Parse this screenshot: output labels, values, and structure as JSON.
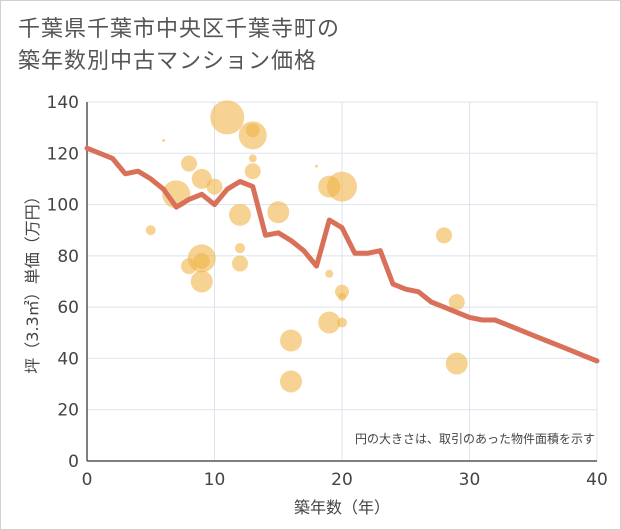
{
  "chart_data": {
    "type": "scatter",
    "title_lines": [
      "千葉県千葉市中央区千葉寺町の",
      "築年数別中古マンション価格"
    ],
    "xlabel": "築年数（年）",
    "ylabel": "坪（3.3㎡）単価（万円）",
    "xlim": [
      0,
      40
    ],
    "ylim": [
      0,
      140
    ],
    "x_ticks": [
      0,
      10,
      20,
      30,
      40
    ],
    "y_ticks": [
      0,
      20,
      40,
      60,
      80,
      100,
      120,
      140
    ],
    "note": "円の大きさは、取引のあった物件面積を示す",
    "colors": {
      "bubble": "#f0b54a",
      "line": "#d9705a",
      "grid": "#dde4ee"
    },
    "line_series": {
      "name": "平均",
      "x": [
        0,
        1,
        2,
        3,
        4,
        5,
        6,
        7,
        8,
        9,
        10,
        11,
        12,
        13,
        14,
        15,
        16,
        17,
        18,
        19,
        20,
        21,
        22,
        23,
        24,
        25,
        26,
        27,
        28,
        29,
        30,
        31,
        32,
        33,
        34,
        35,
        36,
        37,
        38,
        39,
        40
      ],
      "y": [
        122,
        120,
        118,
        112,
        113,
        110,
        106,
        99,
        102,
        104,
        100,
        106,
        109,
        107,
        88,
        89,
        86,
        82,
        76,
        94,
        91,
        81,
        81,
        82,
        69,
        67,
        66,
        62,
        60,
        58,
        56,
        55,
        55,
        53,
        51,
        49,
        47,
        45,
        43,
        41,
        39
      ]
    },
    "bubbles": [
      {
        "x": 5,
        "y": 90,
        "size": 5
      },
      {
        "x": 6,
        "y": 125,
        "size": 1
      },
      {
        "x": 7,
        "y": 104,
        "size": 14
      },
      {
        "x": 8,
        "y": 116,
        "size": 8
      },
      {
        "x": 8,
        "y": 76,
        "size": 8
      },
      {
        "x": 9,
        "y": 110,
        "size": 10
      },
      {
        "x": 9,
        "y": 79,
        "size": 14
      },
      {
        "x": 9,
        "y": 78,
        "size": 8
      },
      {
        "x": 9,
        "y": 70,
        "size": 11
      },
      {
        "x": 10,
        "y": 107,
        "size": 8
      },
      {
        "x": 11,
        "y": 134,
        "size": 17
      },
      {
        "x": 12,
        "y": 96,
        "size": 11
      },
      {
        "x": 12,
        "y": 83,
        "size": 5
      },
      {
        "x": 12,
        "y": 77,
        "size": 8
      },
      {
        "x": 13,
        "y": 127,
        "size": 14
      },
      {
        "x": 13,
        "y": 129,
        "size": 7
      },
      {
        "x": 13,
        "y": 118,
        "size": 4
      },
      {
        "x": 13,
        "y": 113,
        "size": 8
      },
      {
        "x": 15,
        "y": 97,
        "size": 11
      },
      {
        "x": 16,
        "y": 47,
        "size": 11
      },
      {
        "x": 16,
        "y": 31,
        "size": 11
      },
      {
        "x": 18,
        "y": 115,
        "size": 1
      },
      {
        "x": 19,
        "y": 107,
        "size": 11
      },
      {
        "x": 19,
        "y": 73,
        "size": 4
      },
      {
        "x": 19,
        "y": 54,
        "size": 11
      },
      {
        "x": 20,
        "y": 107,
        "size": 15
      },
      {
        "x": 20,
        "y": 66,
        "size": 7
      },
      {
        "x": 20,
        "y": 64,
        "size": 4
      },
      {
        "x": 20,
        "y": 54,
        "size": 5
      },
      {
        "x": 28,
        "y": 88,
        "size": 8
      },
      {
        "x": 29,
        "y": 62,
        "size": 8
      },
      {
        "x": 29,
        "y": 38,
        "size": 11
      }
    ]
  }
}
